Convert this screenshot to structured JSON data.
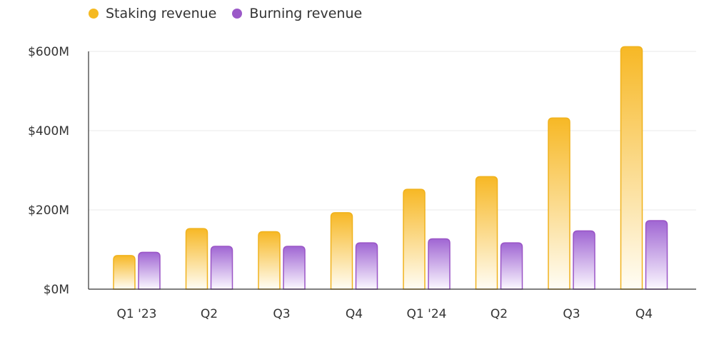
{
  "chart_data": {
    "type": "bar",
    "title": "",
    "xlabel": "",
    "ylabel": "",
    "categories": [
      "Q1 '23",
      "Q2",
      "Q3",
      "Q4",
      "Q1 '24",
      "Q2",
      "Q3",
      "Q4"
    ],
    "series": [
      {
        "name": "Staking revenue",
        "color": "#f5b921",
        "values": [
          85,
          153,
          145,
          193,
          252,
          284,
          432,
          612
        ]
      },
      {
        "name": "Burning revenue",
        "color": "#9b59c8",
        "values": [
          93,
          108,
          108,
          117,
          127,
          117,
          147,
          173
        ]
      }
    ],
    "ylim": [
      0,
      600
    ],
    "yticks": [
      0,
      200,
      400,
      600
    ],
    "ytick_labels": [
      "$0M",
      "$200M",
      "$400M",
      "$600M"
    ],
    "grid": true,
    "legend_position": "top-left"
  }
}
